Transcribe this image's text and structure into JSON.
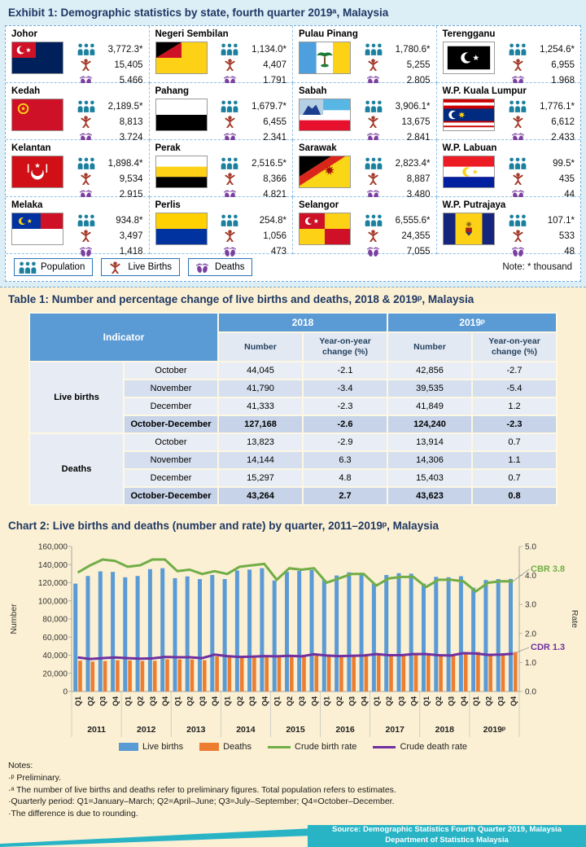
{
  "colors": {
    "accent_navy": "#1F3864",
    "table_header_blue": "#5B9BD5",
    "footer_teal": "#29B4C6",
    "population_icon": "#1B7F9E",
    "live_births_icon": "#A33B2B",
    "deaths_icon": "#7B3FA0",
    "bar_live_births": "#5B9BD5",
    "bar_deaths": "#ED7D31",
    "line_crude_birth_rate": "#71AD47",
    "line_crude_death_rate": "#7030A0"
  },
  "exhibit": {
    "title": "Exhibit 1: Demographic statistics by state, fourth quarter 2019ᵃ, Malaysia",
    "note": "Note: * thousand",
    "legend": [
      {
        "id": "population",
        "label": "Population"
      },
      {
        "id": "live-births",
        "label": "Live Births"
      },
      {
        "id": "deaths",
        "label": "Deaths"
      }
    ],
    "states": [
      {
        "id": "johor",
        "name": "Johor",
        "population": "3,772.3*",
        "live_births": "15,405",
        "deaths": "5,466"
      },
      {
        "id": "negeri-sembilan",
        "name": "Negeri Sembilan",
        "population": "1,134.0*",
        "live_births": "4,407",
        "deaths": "1,791"
      },
      {
        "id": "pulau-pinang",
        "name": "Pulau Pinang",
        "population": "1,780.6*",
        "live_births": "5,255",
        "deaths": "2,805"
      },
      {
        "id": "terengganu",
        "name": "Terengganu",
        "population": "1,254.6*",
        "live_births": "6,955",
        "deaths": "1,968"
      },
      {
        "id": "kedah",
        "name": "Kedah",
        "population": "2,189.5*",
        "live_births": "8,813",
        "deaths": "3,724"
      },
      {
        "id": "pahang",
        "name": "Pahang",
        "population": "1,679.7*",
        "live_births": "6,455",
        "deaths": "2,341"
      },
      {
        "id": "sabah",
        "name": "Sabah",
        "population": "3,906.1*",
        "live_births": "13,675",
        "deaths": "2,841"
      },
      {
        "id": "wp-kuala-lumpur",
        "name": "W.P. Kuala Lumpur",
        "population": "1,776.1*",
        "live_births": "6,612",
        "deaths": "2,433"
      },
      {
        "id": "kelantan",
        "name": "Kelantan",
        "population": "1,898.4*",
        "live_births": "9,534",
        "deaths": "2,915"
      },
      {
        "id": "perak",
        "name": "Perak",
        "population": "2,516.5*",
        "live_births": "8,366",
        "deaths": "4,821"
      },
      {
        "id": "sarawak",
        "name": "Sarawak",
        "population": "2,823.4*",
        "live_births": "8,887",
        "deaths": "3,480"
      },
      {
        "id": "wp-labuan",
        "name": "W.P. Labuan",
        "population": "99.5*",
        "live_births": "435",
        "deaths": "44"
      },
      {
        "id": "melaka",
        "name": "Melaka",
        "population": "934.8*",
        "live_births": "3,497",
        "deaths": "1,418"
      },
      {
        "id": "perlis",
        "name": "Perlis",
        "population": "254.8*",
        "live_births": "1,056",
        "deaths": "473"
      },
      {
        "id": "selangor",
        "name": "Selangor",
        "population": "6,555.6*",
        "live_births": "24,355",
        "deaths": "7,055"
      },
      {
        "id": "wp-putrajaya",
        "name": "W.P. Putrajaya",
        "population": "107.1*",
        "live_births": "533",
        "deaths": "48"
      }
    ]
  },
  "table": {
    "title": "Table 1: Number and percentage change of live births and deaths, 2018 & 2019ᵖ, Malaysia",
    "header": {
      "indicator": "Indicator",
      "number": "Number",
      "yoy": "Year-on-year change (%)"
    },
    "col_groups": [
      "2018",
      "2019ᵖ"
    ],
    "sections": [
      {
        "indicator": "Live births",
        "rows": [
          {
            "period": "October",
            "values": [
              "44,045",
              "-2.1",
              "42,856",
              "-2.7"
            ]
          },
          {
            "period": "November",
            "values": [
              "41,790",
              "-3.4",
              "39,535",
              "-5.4"
            ]
          },
          {
            "period": "December",
            "values": [
              "41,333",
              "-2.3",
              "41,849",
              "1.2"
            ]
          },
          {
            "period": "October-December",
            "values": [
              "127,168",
              "-2.6",
              "124,240",
              "-2.3"
            ],
            "total": true
          }
        ]
      },
      {
        "indicator": "Deaths",
        "rows": [
          {
            "period": "October",
            "values": [
              "13,823",
              "-2.9",
              "13,914",
              "0.7"
            ]
          },
          {
            "period": "November",
            "values": [
              "14,144",
              "6.3",
              "14,306",
              "1.1"
            ]
          },
          {
            "period": "December",
            "values": [
              "15,297",
              "4.8",
              "15,403",
              "0.7"
            ]
          },
          {
            "period": "October-December",
            "values": [
              "43,264",
              "2.7",
              "43,623",
              "0.8"
            ],
            "total": true
          }
        ]
      }
    ]
  },
  "chart": {
    "title": "Chart 2: Live births and deaths (number and rate) by quarter, 2011–2019ᵖ, Malaysia",
    "ylabel_left": "Number",
    "ylabel_right": "Rate",
    "annotations": {
      "cbr": "CBR 3.8",
      "cdr": "CDR 1.3"
    },
    "legend": [
      "Live births",
      "Deaths",
      "Crude birth rate",
      "Crude death rate"
    ]
  },
  "chart_data": {
    "type": "bar",
    "title": "Chart 2: Live births and deaths (number and rate) by quarter, 2011–2019ᵖ, Malaysia",
    "xlabel": "",
    "ylabel_left": "Number",
    "ylabel_right": "Rate",
    "ylim_left": [
      0,
      160000
    ],
    "ylim_right": [
      0,
      5
    ],
    "grid": false,
    "legend_position": "bottom",
    "years": [
      "2011",
      "2012",
      "2013",
      "2014",
      "2015",
      "2016",
      "2017",
      "2018",
      "2019ᵖ"
    ],
    "quarters": [
      "Q1",
      "Q2",
      "Q3",
      "Q4"
    ],
    "series": [
      {
        "name": "Live births",
        "type": "bar",
        "axis": "left",
        "color": "#5B9BD5",
        "values": [
          119000,
          127500,
          132500,
          132000,
          126000,
          127500,
          135000,
          136000,
          125000,
          127000,
          124000,
          128500,
          124000,
          133500,
          134500,
          136000,
          122500,
          132000,
          133000,
          134000,
          123000,
          128000,
          131500,
          131000,
          119000,
          128500,
          130500,
          130000,
          119000,
          126500,
          126000,
          127168,
          114500,
          123000,
          124000,
          124240
        ]
      },
      {
        "name": "Deaths",
        "type": "bar",
        "axis": "left",
        "color": "#ED7D31",
        "values": [
          34000,
          33000,
          33600,
          34500,
          34300,
          33700,
          33900,
          35500,
          35400,
          35400,
          34500,
          38600,
          38000,
          37200,
          37600,
          38200,
          38600,
          38900,
          38600,
          40900,
          39600,
          39100,
          39300,
          39700,
          42100,
          40600,
          40700,
          41600,
          41900,
          40900,
          40600,
          43264,
          43600,
          41600,
          42100,
          43623
        ]
      },
      {
        "name": "Crude birth rate",
        "type": "line",
        "axis": "right",
        "color": "#71AD47",
        "values": [
          4.1,
          4.35,
          4.55,
          4.5,
          4.3,
          4.35,
          4.55,
          4.55,
          4.15,
          4.2,
          4.05,
          4.15,
          4.05,
          4.3,
          4.35,
          4.4,
          3.85,
          4.25,
          4.2,
          4.25,
          3.75,
          3.9,
          4.05,
          4.05,
          3.65,
          3.9,
          3.95,
          3.95,
          3.6,
          3.85,
          3.85,
          3.8,
          3.45,
          3.75,
          3.8,
          3.8
        ]
      },
      {
        "name": "Crude death rate",
        "type": "line",
        "axis": "right",
        "color": "#7030A0",
        "values": [
          1.17,
          1.12,
          1.15,
          1.17,
          1.15,
          1.13,
          1.14,
          1.19,
          1.18,
          1.18,
          1.15,
          1.27,
          1.22,
          1.19,
          1.2,
          1.22,
          1.21,
          1.23,
          1.21,
          1.28,
          1.24,
          1.22,
          1.23,
          1.24,
          1.29,
          1.25,
          1.25,
          1.29,
          1.29,
          1.25,
          1.24,
          1.32,
          1.31,
          1.26,
          1.27,
          1.3
        ]
      }
    ],
    "annotations": [
      {
        "text": "CBR 3.8",
        "color": "#71AD47"
      },
      {
        "text": "CDR 1.3",
        "color": "#7030A0"
      }
    ]
  },
  "notes": {
    "heading": "Notes:",
    "lines": [
      "·ᵖ Preliminary.",
      "·ᵃ The number of live births and deaths refer to preliminary figures. Total population refers to estimates.",
      "·Quarterly period: Q1=January–March; Q2=April–June; Q3=July–September; Q4=October–December.",
      "·The difference is due to rounding."
    ]
  },
  "footer": {
    "line1": "Source: Demographic Statistics Fourth Quarter 2019, Malaysia",
    "line2": "Department of Statistics Malaysia"
  }
}
